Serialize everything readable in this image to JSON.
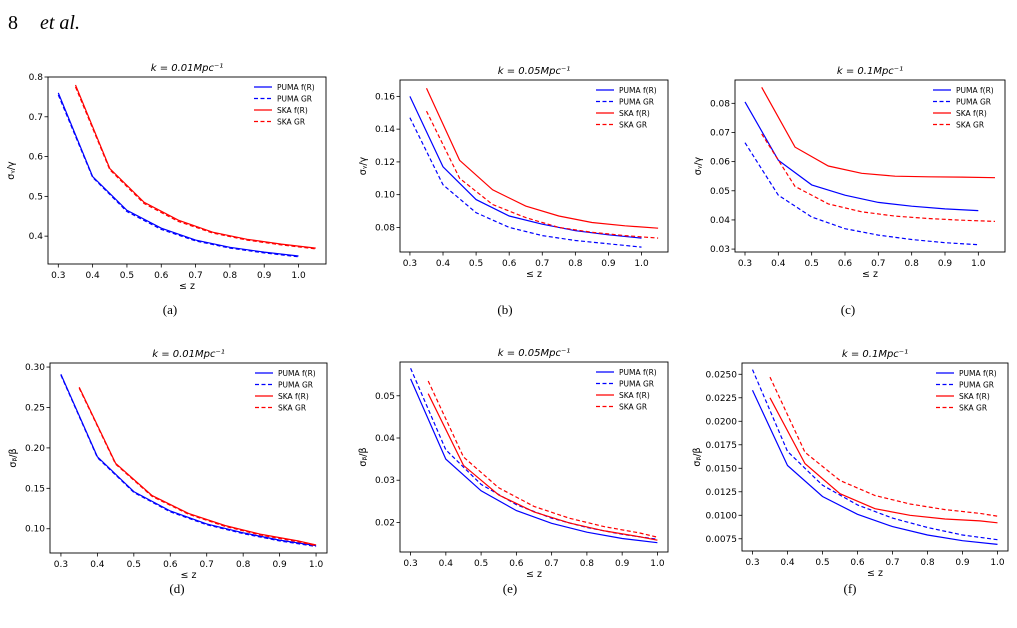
{
  "header": {
    "page_number": "8",
    "title": "et al."
  },
  "chart_data": [
    {
      "type": "line",
      "title": "k = 0.01Mpc⁻¹",
      "caption": "(a)",
      "xlabel": "≤ z",
      "ylabel": "σᵧ/γ",
      "xlim": [
        0.27,
        1.08
      ],
      "ylim": [
        0.33,
        0.8
      ],
      "xticks": [
        0.3,
        0.4,
        0.5,
        0.6,
        0.7,
        0.8,
        0.9,
        1.0
      ],
      "yticks": [
        0.4,
        0.5,
        0.6,
        0.7,
        0.8
      ],
      "ytick_decimals": 1,
      "legend_position": "upper-right",
      "series": [
        {
          "name": "PUMA f(R)",
          "color": "#0000ff",
          "dash": false,
          "x": [
            0.3,
            0.4,
            0.5,
            0.6,
            0.7,
            0.8,
            0.9,
            1.0
          ],
          "y": [
            0.76,
            0.55,
            0.465,
            0.42,
            0.39,
            0.372,
            0.36,
            0.35
          ]
        },
        {
          "name": "PUMA GR",
          "color": "#0000ff",
          "dash": true,
          "x": [
            0.3,
            0.4,
            0.5,
            0.6,
            0.7,
            0.8,
            0.9,
            1.0
          ],
          "y": [
            0.755,
            0.548,
            0.462,
            0.417,
            0.388,
            0.37,
            0.358,
            0.348
          ]
        },
        {
          "name": "SKA f(R)",
          "color": "#ff0000",
          "dash": false,
          "x": [
            0.35,
            0.45,
            0.55,
            0.65,
            0.75,
            0.85,
            0.95,
            1.05
          ],
          "y": [
            0.78,
            0.57,
            0.485,
            0.44,
            0.41,
            0.392,
            0.38,
            0.37
          ]
        },
        {
          "name": "SKA GR",
          "color": "#ff0000",
          "dash": true,
          "x": [
            0.35,
            0.45,
            0.55,
            0.65,
            0.75,
            0.85,
            0.95,
            1.05
          ],
          "y": [
            0.775,
            0.567,
            0.482,
            0.437,
            0.408,
            0.39,
            0.378,
            0.368
          ]
        }
      ]
    },
    {
      "type": "line",
      "title": "k = 0.05Mpc⁻¹",
      "caption": "(b)",
      "xlabel": "≤ z",
      "ylabel": "σᵧ/γ",
      "xlim": [
        0.27,
        1.08
      ],
      "ylim": [
        0.065,
        0.17
      ],
      "xticks": [
        0.3,
        0.4,
        0.5,
        0.6,
        0.7,
        0.8,
        0.9,
        1.0
      ],
      "yticks": [
        0.08,
        0.1,
        0.12,
        0.14,
        0.16
      ],
      "ytick_decimals": 2,
      "legend_position": "upper-right",
      "series": [
        {
          "name": "PUMA f(R)",
          "color": "#0000ff",
          "dash": false,
          "x": [
            0.3,
            0.4,
            0.5,
            0.6,
            0.7,
            0.8,
            0.9,
            1.0
          ],
          "y": [
            0.16,
            0.117,
            0.097,
            0.087,
            0.082,
            0.078,
            0.0755,
            0.0735
          ]
        },
        {
          "name": "PUMA GR",
          "color": "#0000ff",
          "dash": true,
          "x": [
            0.3,
            0.4,
            0.5,
            0.6,
            0.7,
            0.8,
            0.9,
            1.0
          ],
          "y": [
            0.147,
            0.106,
            0.089,
            0.08,
            0.075,
            0.072,
            0.07,
            0.068
          ]
        },
        {
          "name": "SKA f(R)",
          "color": "#ff0000",
          "dash": false,
          "x": [
            0.35,
            0.45,
            0.55,
            0.65,
            0.75,
            0.85,
            0.95,
            1.05
          ],
          "y": [
            0.165,
            0.121,
            0.103,
            0.093,
            0.087,
            0.083,
            0.081,
            0.0795
          ]
        },
        {
          "name": "SKA GR",
          "color": "#ff0000",
          "dash": true,
          "x": [
            0.35,
            0.45,
            0.55,
            0.65,
            0.75,
            0.85,
            0.95,
            1.05
          ],
          "y": [
            0.151,
            0.11,
            0.094,
            0.086,
            0.08,
            0.077,
            0.075,
            0.0735
          ]
        }
      ]
    },
    {
      "type": "line",
      "title": "k = 0.1Mpc⁻¹",
      "caption": "(c)",
      "xlabel": "≤ z",
      "ylabel": "σᵧ/γ",
      "xlim": [
        0.27,
        1.08
      ],
      "ylim": [
        0.029,
        0.088
      ],
      "xticks": [
        0.3,
        0.4,
        0.5,
        0.6,
        0.7,
        0.8,
        0.9,
        1.0
      ],
      "yticks": [
        0.03,
        0.04,
        0.05,
        0.06,
        0.07,
        0.08
      ],
      "ytick_decimals": 2,
      "legend_position": "upper-right",
      "series": [
        {
          "name": "PUMA f(R)",
          "color": "#0000ff",
          "dash": false,
          "x": [
            0.3,
            0.4,
            0.5,
            0.6,
            0.7,
            0.8,
            0.9,
            1.0
          ],
          "y": [
            0.0805,
            0.0605,
            0.052,
            0.0485,
            0.046,
            0.0447,
            0.0438,
            0.0432
          ]
        },
        {
          "name": "PUMA GR",
          "color": "#0000ff",
          "dash": true,
          "x": [
            0.3,
            0.4,
            0.5,
            0.6,
            0.7,
            0.8,
            0.9,
            1.0
          ],
          "y": [
            0.0665,
            0.0485,
            0.041,
            0.037,
            0.0348,
            0.0333,
            0.0322,
            0.0315
          ]
        },
        {
          "name": "SKA f(R)",
          "color": "#ff0000",
          "dash": false,
          "x": [
            0.35,
            0.45,
            0.55,
            0.65,
            0.75,
            0.85,
            0.95,
            1.05
          ],
          "y": [
            0.0855,
            0.065,
            0.0585,
            0.056,
            0.055,
            0.0548,
            0.0547,
            0.0545
          ]
        },
        {
          "name": "SKA GR",
          "color": "#ff0000",
          "dash": true,
          "x": [
            0.35,
            0.45,
            0.55,
            0.65,
            0.75,
            0.85,
            0.95,
            1.05
          ],
          "y": [
            0.0695,
            0.0515,
            0.0455,
            0.0428,
            0.0413,
            0.0405,
            0.0399,
            0.0395
          ]
        }
      ]
    },
    {
      "type": "line",
      "title": "k = 0.01Mpc⁻¹",
      "caption": "(d)",
      "xlabel": "≤ z",
      "ylabel": "σᵦ/β",
      "xlim": [
        0.27,
        1.03
      ],
      "ylim": [
        0.07,
        0.305
      ],
      "xticks": [
        0.3,
        0.4,
        0.5,
        0.6,
        0.7,
        0.8,
        0.9,
        1.0
      ],
      "yticks": [
        0.1,
        0.15,
        0.2,
        0.25,
        0.3
      ],
      "ytick_decimals": 2,
      "legend_position": "upper-right",
      "series": [
        {
          "name": "PUMA f(R)",
          "color": "#0000ff",
          "dash": false,
          "x": [
            0.3,
            0.4,
            0.5,
            0.6,
            0.7,
            0.8,
            0.9,
            1.0
          ],
          "y": [
            0.291,
            0.189,
            0.146,
            0.122,
            0.106,
            0.095,
            0.086,
            0.079
          ]
        },
        {
          "name": "PUMA GR",
          "color": "#0000ff",
          "dash": true,
          "x": [
            0.3,
            0.4,
            0.5,
            0.6,
            0.7,
            0.8,
            0.9,
            1.0
          ],
          "y": [
            0.29,
            0.188,
            0.145,
            0.121,
            0.105,
            0.094,
            0.085,
            0.078
          ]
        },
        {
          "name": "SKA f(R)",
          "color": "#ff0000",
          "dash": false,
          "x": [
            0.35,
            0.45,
            0.55,
            0.65,
            0.75,
            0.85,
            0.95,
            1.0
          ],
          "y": [
            0.275,
            0.181,
            0.141,
            0.119,
            0.104,
            0.093,
            0.085,
            0.08
          ]
        },
        {
          "name": "SKA GR",
          "color": "#ff0000",
          "dash": true,
          "x": [
            0.35,
            0.45,
            0.55,
            0.65,
            0.75,
            0.85,
            0.95,
            1.0
          ],
          "y": [
            0.274,
            0.18,
            0.14,
            0.118,
            0.103,
            0.092,
            0.084,
            0.079
          ]
        }
      ]
    },
    {
      "type": "line",
      "title": "k = 0.05Mpc⁻¹",
      "caption": "(e)",
      "xlabel": "≤ z",
      "ylabel": "σᵦ/β",
      "xlim": [
        0.27,
        1.03
      ],
      "ylim": [
        0.013,
        0.058
      ],
      "xticks": [
        0.3,
        0.4,
        0.5,
        0.6,
        0.7,
        0.8,
        0.9,
        1.0
      ],
      "yticks": [
        0.02,
        0.03,
        0.04,
        0.05
      ],
      "ytick_decimals": 2,
      "legend_position": "upper-right",
      "series": [
        {
          "name": "PUMA f(R)",
          "color": "#0000ff",
          "dash": false,
          "x": [
            0.3,
            0.4,
            0.5,
            0.6,
            0.7,
            0.8,
            0.9,
            1.0
          ],
          "y": [
            0.054,
            0.035,
            0.0275,
            0.0228,
            0.0198,
            0.0177,
            0.0162,
            0.0152
          ]
        },
        {
          "name": "PUMA GR",
          "color": "#0000ff",
          "dash": true,
          "x": [
            0.3,
            0.4,
            0.5,
            0.6,
            0.7,
            0.8,
            0.9,
            1.0
          ],
          "y": [
            0.0565,
            0.0372,
            0.029,
            0.0242,
            0.021,
            0.0188,
            0.0172,
            0.016
          ]
        },
        {
          "name": "SKA f(R)",
          "color": "#ff0000",
          "dash": false,
          "x": [
            0.35,
            0.45,
            0.55,
            0.65,
            0.75,
            0.85,
            0.95,
            1.0
          ],
          "y": [
            0.0505,
            0.0335,
            0.0265,
            0.0225,
            0.0199,
            0.018,
            0.0166,
            0.0158
          ]
        },
        {
          "name": "SKA GR",
          "color": "#ff0000",
          "dash": true,
          "x": [
            0.35,
            0.45,
            0.55,
            0.65,
            0.75,
            0.85,
            0.95,
            1.0
          ],
          "y": [
            0.0535,
            0.0355,
            0.0282,
            0.0238,
            0.021,
            0.019,
            0.0175,
            0.0165
          ]
        }
      ]
    },
    {
      "type": "line",
      "title": "k = 0.1Mpc⁻¹",
      "caption": "(f)",
      "xlabel": "≤ z",
      "ylabel": "σᵦ/β",
      "xlim": [
        0.27,
        1.03
      ],
      "ylim": [
        0.0062,
        0.0262
      ],
      "xticks": [
        0.3,
        0.4,
        0.5,
        0.6,
        0.7,
        0.8,
        0.9,
        1.0
      ],
      "yticks": [
        0.0075,
        0.01,
        0.0125,
        0.015,
        0.0175,
        0.02,
        0.0225,
        0.025
      ],
      "ytick_decimals": 4,
      "legend_position": "upper-right",
      "series": [
        {
          "name": "PUMA f(R)",
          "color": "#0000ff",
          "dash": false,
          "x": [
            0.3,
            0.4,
            0.5,
            0.6,
            0.7,
            0.8,
            0.9,
            1.0
          ],
          "y": [
            0.0233,
            0.0153,
            0.012,
            0.0101,
            0.0088,
            0.0079,
            0.0073,
            0.0069
          ]
        },
        {
          "name": "PUMA GR",
          "color": "#0000ff",
          "dash": true,
          "x": [
            0.3,
            0.4,
            0.5,
            0.6,
            0.7,
            0.8,
            0.9,
            1.0
          ],
          "y": [
            0.0255,
            0.0168,
            0.0132,
            0.0111,
            0.0097,
            0.0087,
            0.0079,
            0.0074
          ]
        },
        {
          "name": "SKA f(R)",
          "color": "#ff0000",
          "dash": false,
          "x": [
            0.35,
            0.45,
            0.55,
            0.65,
            0.75,
            0.85,
            0.95,
            1.0
          ],
          "y": [
            0.0225,
            0.0155,
            0.0123,
            0.0107,
            0.01,
            0.0096,
            0.0094,
            0.0092
          ]
        },
        {
          "name": "SKA GR",
          "color": "#ff0000",
          "dash": true,
          "x": [
            0.35,
            0.45,
            0.55,
            0.65,
            0.75,
            0.85,
            0.95,
            1.0
          ],
          "y": [
            0.0247,
            0.0167,
            0.0137,
            0.0121,
            0.0112,
            0.0106,
            0.0102,
            0.0099
          ]
        }
      ]
    }
  ]
}
